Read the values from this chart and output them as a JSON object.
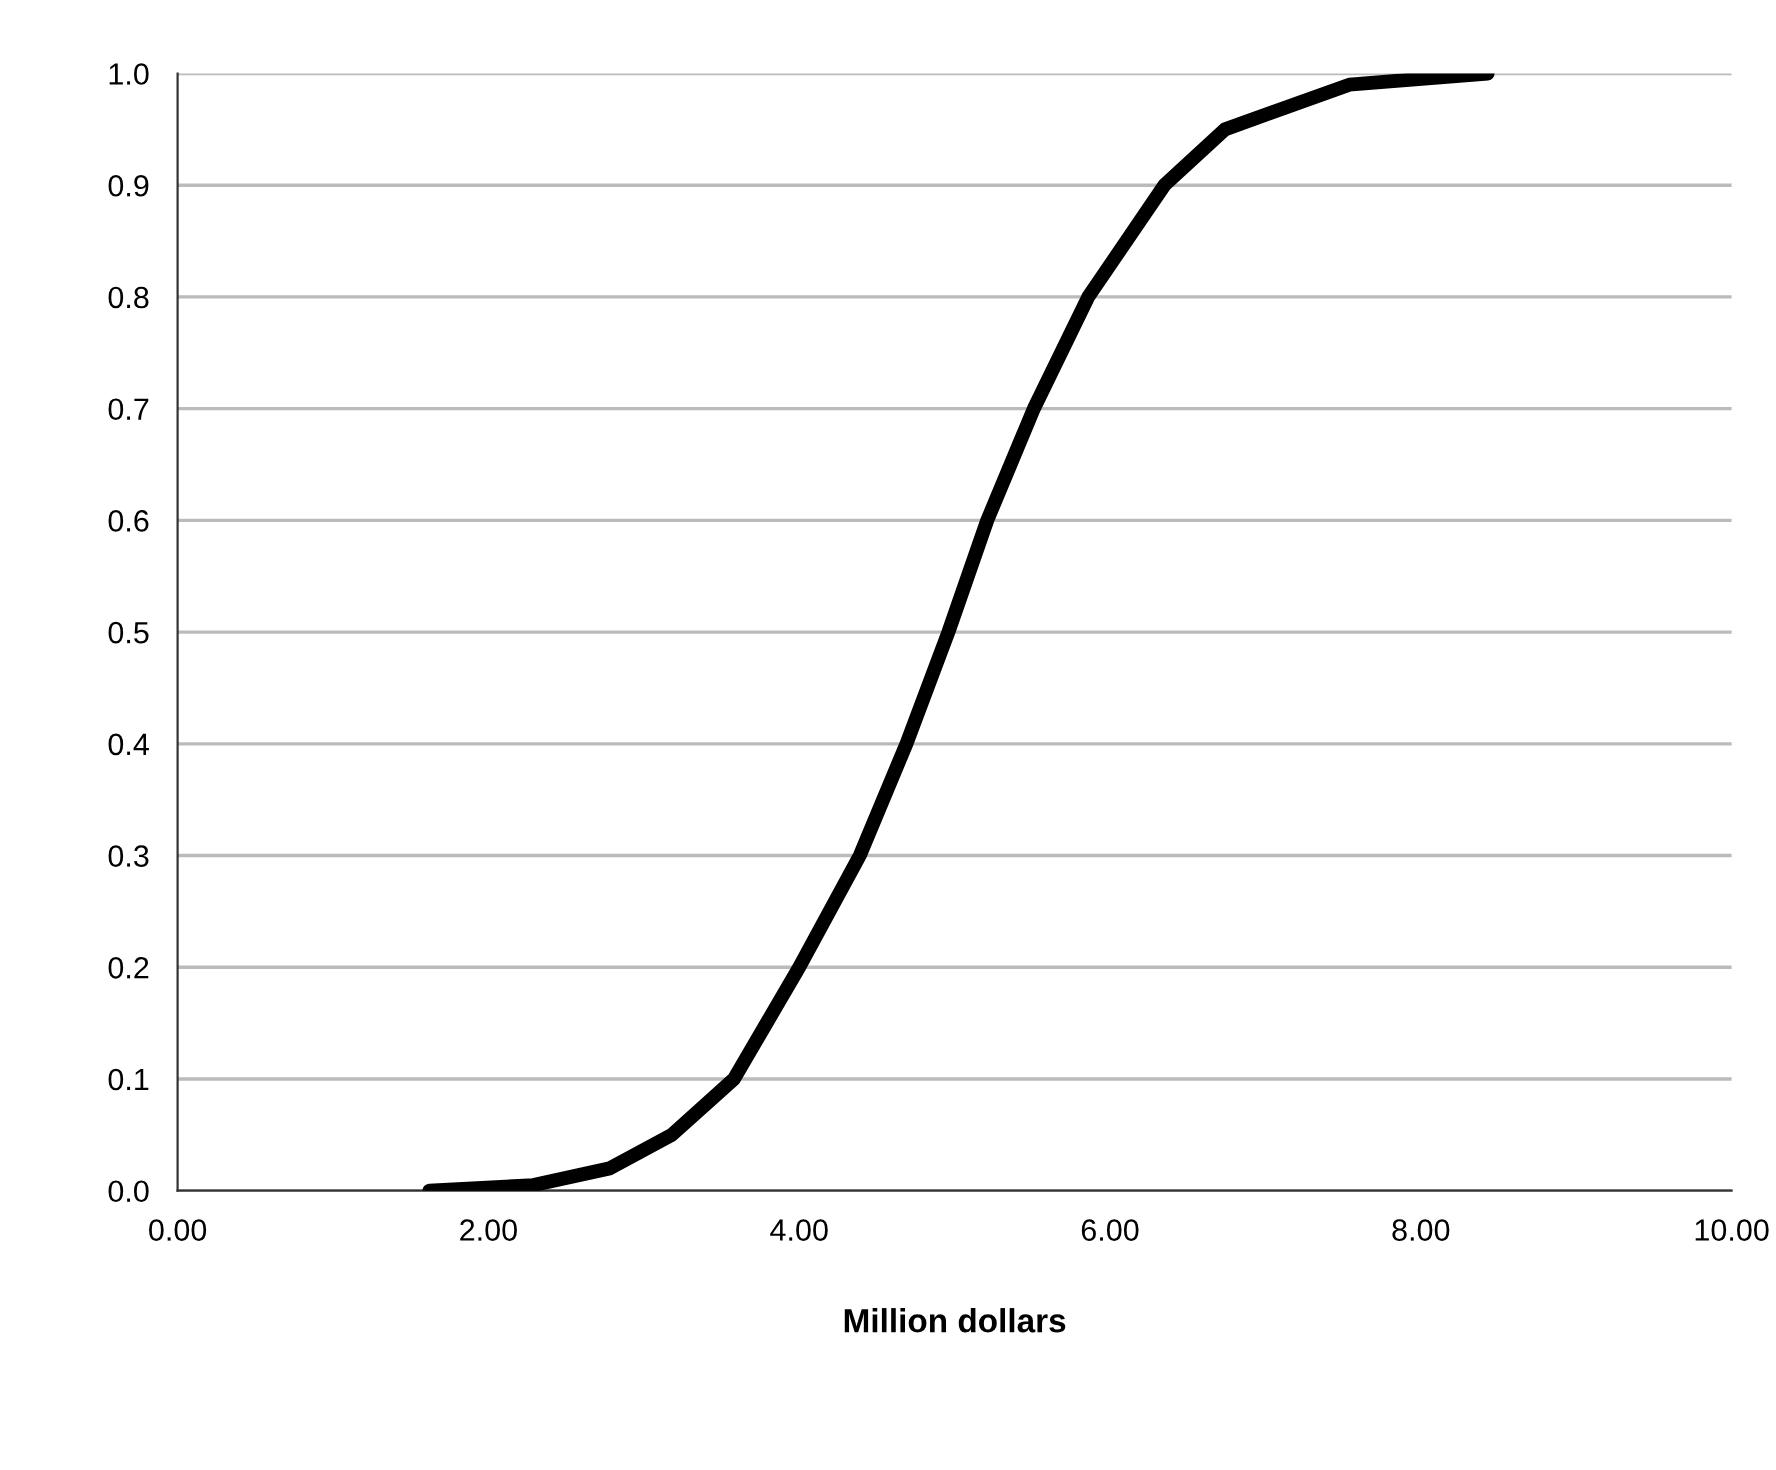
{
  "chart_data": {
    "type": "line",
    "xlabel": "Million dollars",
    "x": [
      1.62,
      2.29,
      2.78,
      3.18,
      3.58,
      4.0,
      4.39,
      4.69,
      4.96,
      5.21,
      5.51,
      5.86,
      6.35,
      6.74,
      7.54,
      8.43
    ],
    "series": [
      {
        "color": "#000000",
        "values": [
          0.0,
          0.005,
          0.02,
          0.05,
          0.1,
          0.2,
          0.3,
          0.4,
          0.5,
          0.6,
          0.7,
          0.8,
          0.9,
          0.95,
          0.99,
          1.0
        ]
      }
    ],
    "xlim": [
      0,
      10
    ],
    "xticks": [
      {
        "value": 0,
        "label": "0.00"
      },
      {
        "value": 2,
        "label": "2.00"
      },
      {
        "value": 4,
        "label": "4.00"
      },
      {
        "value": 6,
        "label": "6.00"
      },
      {
        "value": 8,
        "label": "8.00"
      },
      {
        "value": 10,
        "label": "10.00"
      }
    ],
    "ylim": [
      0,
      1
    ],
    "yticks": [
      {
        "value": 0,
        "label": "0.0"
      },
      {
        "value": 0.1,
        "label": "0.1"
      },
      {
        "value": 0.2,
        "label": "0.2"
      },
      {
        "value": 0.3,
        "label": "0.3"
      },
      {
        "value": 0.4,
        "label": "0.4"
      },
      {
        "value": 0.5,
        "label": "0.5"
      },
      {
        "value": 0.6,
        "label": "0.6"
      },
      {
        "value": 0.7,
        "label": "0.7"
      },
      {
        "value": 0.8,
        "label": "0.8"
      },
      {
        "value": 0.9,
        "label": "0.9"
      },
      {
        "value": 1.0,
        "label": "1.0"
      }
    ],
    "grid": "y",
    "marker": "none",
    "line_style": "solid"
  }
}
